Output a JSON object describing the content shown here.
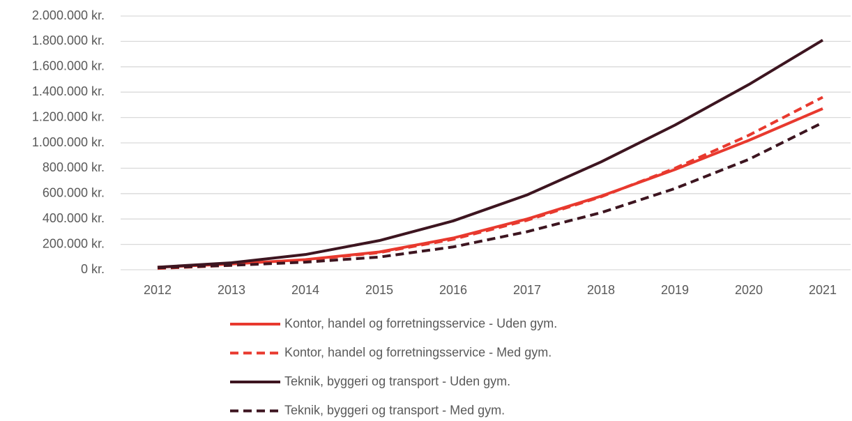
{
  "chart_data": {
    "type": "line",
    "categories": [
      "2012",
      "2013",
      "2014",
      "2015",
      "2016",
      "2017",
      "2018",
      "2019",
      "2020",
      "2021"
    ],
    "series": [
      {
        "name": "Kontor, handel og forretningsservice - Uden gym.",
        "color": "#e8392e",
        "dashed": false,
        "values": [
          20000,
          45000,
          80000,
          140000,
          250000,
          400000,
          580000,
          790000,
          1020000,
          1270000
        ]
      },
      {
        "name": "Kontor, handel og forretningsservice - Med gym.",
        "color": "#e8392e",
        "dashed": true,
        "values": [
          10000,
          35000,
          75000,
          135000,
          240000,
          390000,
          575000,
          800000,
          1060000,
          1360000
        ]
      },
      {
        "name": "Teknik, byggeri og transport - Uden gym.",
        "color": "#3d1520",
        "dashed": false,
        "values": [
          20000,
          55000,
          120000,
          230000,
          385000,
          590000,
          850000,
          1140000,
          1460000,
          1810000
        ]
      },
      {
        "name": "Teknik, byggeri og transport - Med gym.",
        "color": "#3d1520",
        "dashed": true,
        "values": [
          15000,
          35000,
          60000,
          100000,
          180000,
          300000,
          450000,
          640000,
          870000,
          1160000
        ]
      }
    ],
    "ylim": [
      0,
      2000000
    ],
    "yticks": [
      {
        "value": 0,
        "label": "0 kr."
      },
      {
        "value": 200000,
        "label": "200.000 kr."
      },
      {
        "value": 400000,
        "label": "400.000 kr."
      },
      {
        "value": 600000,
        "label": "600.000 kr."
      },
      {
        "value": 800000,
        "label": "800.000 kr."
      },
      {
        "value": 1000000,
        "label": "1.000.000 kr."
      },
      {
        "value": 1200000,
        "label": "1.200.000 kr."
      },
      {
        "value": 1400000,
        "label": "1.400.000 kr."
      },
      {
        "value": 1600000,
        "label": "1.600.000 kr."
      },
      {
        "value": 1800000,
        "label": "1.800.000 kr."
      },
      {
        "value": 2000000,
        "label": "2.000.000 kr."
      }
    ],
    "grid": true,
    "legend": "bottom"
  }
}
